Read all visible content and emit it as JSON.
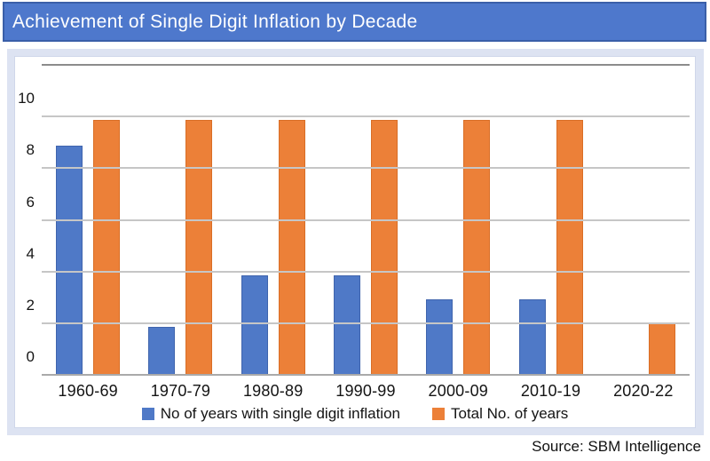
{
  "header": {
    "title": "Achievement of Single Digit Inflation by Decade"
  },
  "footer": {
    "source": "Source: SBM Intelligence"
  },
  "colors": {
    "title_bar_fill": "#4e78cc",
    "title_bar_border": "#3a5fa8",
    "panel_background": "#dde3f2",
    "series_blue": "#4f79c7",
    "series_orange": "#ec8038",
    "gridline": "#c6c6c6",
    "plot_top_border": "#8c8c8c"
  },
  "chart_data": {
    "type": "bar",
    "title": "Achievement of Single Digit Inflation by Decade",
    "categories": [
      "1960-69",
      "1970-79",
      "1980-89",
      "1990-99",
      "2000-09",
      "2010-19",
      "2020-22"
    ],
    "series": [
      {
        "name": "No of years with single digit inflation",
        "color": "#4f79c7",
        "values": [
          8.9,
          1.9,
          3.9,
          3.9,
          2.95,
          2.95,
          0
        ]
      },
      {
        "name": "Total No. of years",
        "color": "#ec8038",
        "values": [
          9.9,
          9.9,
          9.9,
          9.9,
          9.9,
          9.9,
          2.05
        ]
      }
    ],
    "xlabel": "",
    "ylabel": "",
    "ylim": [
      0,
      12
    ],
    "yticks": [
      0,
      2,
      4,
      6,
      8,
      10
    ],
    "grid": true,
    "legend_position": "bottom",
    "source": "Source: SBM Intelligence"
  }
}
